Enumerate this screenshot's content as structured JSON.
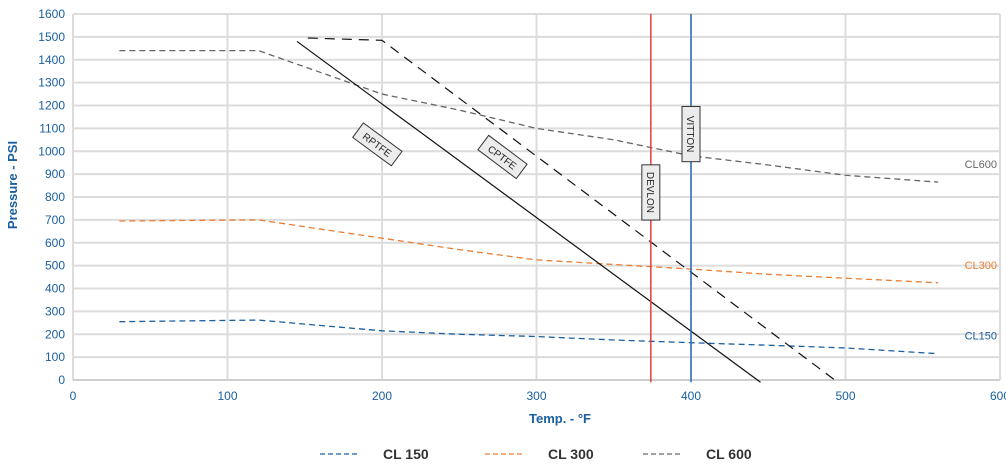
{
  "chart_data": {
    "type": "line",
    "xlabel": "Temp. - °F",
    "ylabel": "Pressure - PSI",
    "xlim": [
      0,
      600
    ],
    "ylim": [
      0,
      1600
    ],
    "x_ticks": [
      "0",
      "100",
      "200",
      "300",
      "400",
      "500",
      "600"
    ],
    "y_ticks": [
      "0",
      "100",
      "200",
      "300",
      "400",
      "500",
      "600",
      "700",
      "800",
      "900",
      "1000",
      "1100",
      "1200",
      "1300",
      "1400",
      "1500",
      "1600"
    ],
    "grid": true,
    "legend": "bottom",
    "series": [
      {
        "name": "CL 150",
        "style": "dashed",
        "color": "#1a5fa0",
        "points": [
          [
            30,
            255
          ],
          [
            120,
            262
          ],
          [
            200,
            215
          ],
          [
            250,
            200
          ],
          [
            300,
            190
          ],
          [
            350,
            175
          ],
          [
            400,
            163
          ],
          [
            450,
            152
          ],
          [
            500,
            140
          ],
          [
            560,
            115
          ]
        ],
        "end_label": "CL150"
      },
      {
        "name": "CL 300",
        "style": "dashed",
        "color": "#ec7c30",
        "points": [
          [
            30,
            695
          ],
          [
            120,
            700
          ],
          [
            200,
            620
          ],
          [
            250,
            570
          ],
          [
            300,
            525
          ],
          [
            350,
            505
          ],
          [
            400,
            485
          ],
          [
            450,
            462
          ],
          [
            500,
            445
          ],
          [
            560,
            425
          ]
        ],
        "end_label": "CL300"
      },
      {
        "name": "CL 600",
        "style": "dashed",
        "color": "#666666",
        "points": [
          [
            30,
            1440
          ],
          [
            120,
            1440
          ],
          [
            200,
            1250
          ],
          [
            250,
            1180
          ],
          [
            300,
            1100
          ],
          [
            350,
            1050
          ],
          [
            400,
            980
          ],
          [
            450,
            940
          ],
          [
            500,
            895
          ],
          [
            560,
            865
          ]
        ],
        "end_label": "CL600"
      }
    ],
    "limits": [
      {
        "name": "RPTFE",
        "style": "solid",
        "color": "#111111",
        "points": [
          [
            145,
            1480
          ],
          [
            445,
            -10
          ]
        ],
        "label_at": [
          197,
          1030
        ]
      },
      {
        "name": "CPTFE",
        "style": "dashed",
        "color": "#111111",
        "points": [
          [
            152,
            1495
          ],
          [
            200,
            1485
          ],
          [
            495,
            -10
          ]
        ],
        "label_at": [
          278,
          975
        ]
      },
      {
        "name": "DEVLON",
        "orientation": "vertical",
        "color": "#e0403a",
        "x": 374,
        "ylim": [
          -10,
          1600
        ],
        "label_at": [
          374,
          820
        ]
      },
      {
        "name": "VITTON",
        "orientation": "vertical",
        "color": "#2a6dbf",
        "x": 400,
        "ylim": [
          -10,
          1600
        ],
        "label_at": [
          400,
          1075
        ]
      }
    ]
  },
  "legend": {
    "items": [
      {
        "label": "CL 150",
        "color": "#1a5fa0"
      },
      {
        "label": "CL 300",
        "color": "#ec7c30"
      },
      {
        "label": "CL 600",
        "color": "#666666"
      }
    ]
  }
}
